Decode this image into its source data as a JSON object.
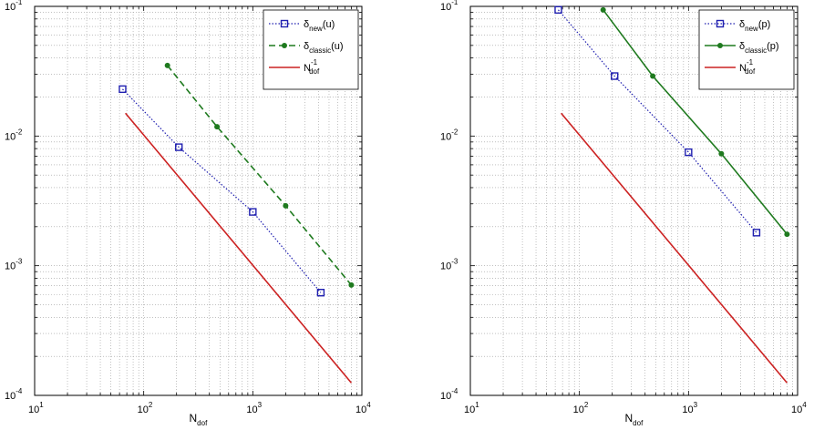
{
  "chart_data": [
    {
      "type": "line",
      "title": "",
      "xlabel": {
        "main": "N",
        "sub": "dof"
      },
      "ylabel": "",
      "xscale": "log",
      "yscale": "log",
      "xlim": [
        10,
        10000
      ],
      "ylim": [
        0.0001,
        0.1
      ],
      "grid": true,
      "legend_position": "top-right",
      "x_ticks": [
        {
          "base": "10",
          "exp": "1"
        },
        {
          "base": "10",
          "exp": "2"
        },
        {
          "base": "10",
          "exp": "3"
        },
        {
          "base": "10",
          "exp": "4"
        }
      ],
      "y_ticks": [
        {
          "base": "10",
          "exp": "-4"
        },
        {
          "base": "10",
          "exp": "-3"
        },
        {
          "base": "10",
          "exp": "-2"
        },
        {
          "base": "10",
          "exp": "-1"
        }
      ],
      "series": [
        {
          "name": {
            "main": "δ",
            "sub": "new",
            "tail": "(u)"
          },
          "color": "#1f1fb0",
          "line": "dotted",
          "marker": "square",
          "x": [
            64,
            210,
            1000,
            4200
          ],
          "y": [
            0.023,
            0.0082,
            0.0026,
            0.00062
          ]
        },
        {
          "name": {
            "main": "δ",
            "sub": "classic",
            "tail": "(u)"
          },
          "color": "#1f7a1f",
          "line": "dashed",
          "marker": "dot",
          "x": [
            165,
            470,
            2000,
            8000
          ],
          "y": [
            0.035,
            0.0118,
            0.0029,
            0.00071
          ]
        },
        {
          "name": {
            "main": "N",
            "sup": "-1",
            "sub": "dof",
            "tail": ""
          },
          "color": "#cc2222",
          "line": "solid",
          "marker": "none",
          "x": [
            68,
            8000
          ],
          "y": [
            0.015,
            0.000125
          ]
        }
      ]
    },
    {
      "type": "line",
      "title": "",
      "xlabel": {
        "main": "N",
        "sub": "dof"
      },
      "ylabel": "",
      "xscale": "log",
      "yscale": "log",
      "xlim": [
        10,
        10000
      ],
      "ylim": [
        0.0001,
        0.1
      ],
      "grid": true,
      "legend_position": "top-right",
      "x_ticks": [
        {
          "base": "10",
          "exp": "1"
        },
        {
          "base": "10",
          "exp": "2"
        },
        {
          "base": "10",
          "exp": "3"
        },
        {
          "base": "10",
          "exp": "4"
        }
      ],
      "y_ticks": [
        {
          "base": "10",
          "exp": "-4"
        },
        {
          "base": "10",
          "exp": "-3"
        },
        {
          "base": "10",
          "exp": "-2"
        },
        {
          "base": "10",
          "exp": "-1"
        }
      ],
      "series": [
        {
          "name": {
            "main": "δ",
            "sub": "new",
            "tail": "(p)"
          },
          "color": "#1f1fb0",
          "line": "dotted",
          "marker": "square",
          "x": [
            64,
            210,
            1000,
            4200
          ],
          "y": [
            0.094,
            0.029,
            0.0075,
            0.0018
          ]
        },
        {
          "name": {
            "main": "δ",
            "sub": "classic",
            "tail": "(p)"
          },
          "color": "#1f7a1f",
          "line": "solid",
          "marker": "dot",
          "x": [
            165,
            470,
            2000,
            8000
          ],
          "y": [
            0.094,
            0.029,
            0.0073,
            0.00175
          ]
        },
        {
          "name": {
            "main": "N",
            "sup": "-1",
            "sub": "dof",
            "tail": ""
          },
          "color": "#cc2222",
          "line": "solid",
          "marker": "none",
          "x": [
            68,
            8000
          ],
          "y": [
            0.015,
            0.000125
          ]
        }
      ]
    }
  ]
}
